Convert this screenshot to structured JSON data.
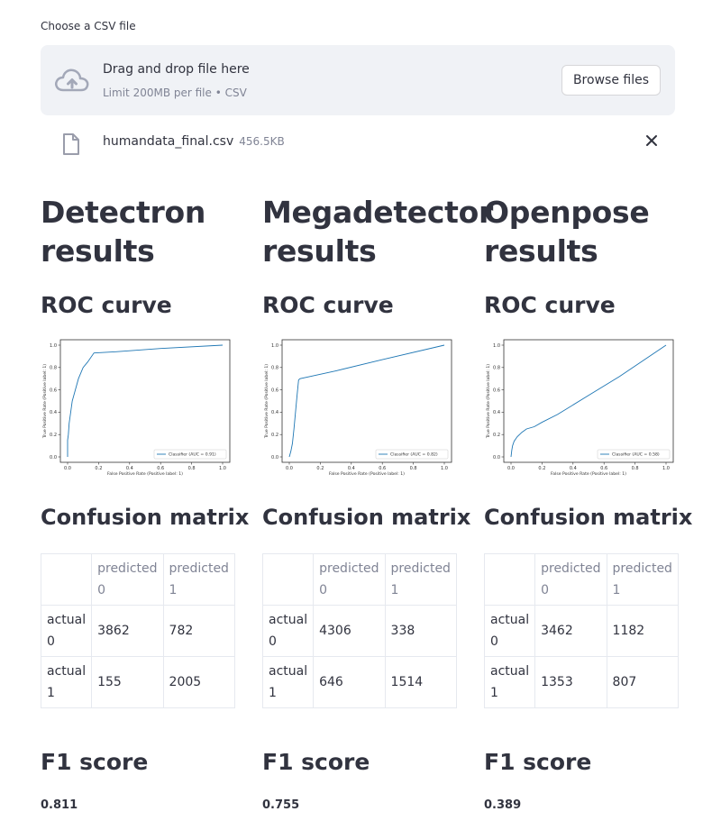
{
  "uploader": {
    "label": "Choose a CSV file",
    "drop_title": "Drag and drop file here",
    "limit": "Limit 200MB per file • CSV",
    "browse_label": "Browse files",
    "file_name": "humandata_final.csv",
    "file_size": "456.5KB"
  },
  "columns": [
    {
      "title": "Detectron results",
      "roc_heading": "ROC curve",
      "cm_heading": "Confusion matrix",
      "f1_heading": "F1 score",
      "f1_value": "0.811",
      "matrix": {
        "col_headers": [
          "predicted 0",
          "predicted 1"
        ],
        "rows": [
          {
            "label": "actual 0",
            "values": [
              "3862",
              "782"
            ]
          },
          {
            "label": "actual 1",
            "values": [
              "155",
              "2005"
            ]
          }
        ]
      },
      "chart_data": {
        "type": "line",
        "xlabel": "False Positive Rate (Positive label: 1)",
        "ylabel": "True Positive Rate (Positive label: 1)",
        "xlim": [
          0,
          1
        ],
        "ylim": [
          0,
          1
        ],
        "xticks": [
          "0.0",
          "0.2",
          "0.4",
          "0.6",
          "0.8",
          "1.0"
        ],
        "yticks": [
          "0.0",
          "0.2",
          "0.4",
          "0.6",
          "0.8",
          "1.0"
        ],
        "legend": "top-right",
        "series": [
          {
            "name": "Classifier (AUC = 0.91)",
            "x": [
              0,
              0,
              0.005,
              0.01,
              0.02,
              0.03,
              0.05,
              0.07,
              0.1,
              0.13,
              0.17,
              0.3,
              0.6,
              1.0
            ],
            "y": [
              0,
              0.15,
              0.2,
              0.3,
              0.4,
              0.5,
              0.6,
              0.7,
              0.8,
              0.85,
              0.93,
              0.94,
              0.97,
              1.0
            ]
          }
        ]
      }
    },
    {
      "title": "Megadetector results",
      "roc_heading": "ROC curve",
      "cm_heading": "Confusion matrix",
      "f1_heading": "F1 score",
      "f1_value": "0.755",
      "matrix": {
        "col_headers": [
          "predicted 0",
          "predicted 1"
        ],
        "rows": [
          {
            "label": "actual 0",
            "values": [
              "4306",
              "338"
            ]
          },
          {
            "label": "actual 1",
            "values": [
              "646",
              "1514"
            ]
          }
        ]
      },
      "chart_data": {
        "type": "line",
        "xlabel": "False Positive Rate (Positive label: 1)",
        "ylabel": "True Positive Rate (Positive label: 1)",
        "xlim": [
          0,
          1
        ],
        "ylim": [
          0,
          1
        ],
        "xticks": [
          "0.0",
          "0.2",
          "0.4",
          "0.6",
          "0.8",
          "1.0"
        ],
        "yticks": [
          "0.0",
          "0.2",
          "0.4",
          "0.6",
          "0.8",
          "1.0"
        ],
        "legend": "top-right",
        "series": [
          {
            "name": "Classifier (AUC = 0.82)",
            "x": [
              0,
              0.01,
              0.02,
              0.03,
              0.04,
              0.05,
              0.06,
              0.07,
              0.3,
              0.6,
              1.0
            ],
            "y": [
              0,
              0.05,
              0.12,
              0.25,
              0.4,
              0.55,
              0.69,
              0.7,
              0.77,
              0.87,
              1.0
            ]
          }
        ]
      }
    },
    {
      "title": "Openpose results",
      "roc_heading": "ROC curve",
      "cm_heading": "Confusion matrix",
      "f1_heading": "F1 score",
      "f1_value": "0.389",
      "matrix": {
        "col_headers": [
          "predicted 0",
          "predicted 1"
        ],
        "rows": [
          {
            "label": "actual 0",
            "values": [
              "3462",
              "1182"
            ]
          },
          {
            "label": "actual 1",
            "values": [
              "1353",
              "807"
            ]
          }
        ]
      },
      "chart_data": {
        "type": "line",
        "xlabel": "False Positive Rate (Positive label: 1)",
        "ylabel": "True Positive Rate (Positive label: 1)",
        "xlim": [
          0,
          1
        ],
        "ylim": [
          0,
          1
        ],
        "xticks": [
          "0.0",
          "0.2",
          "0.4",
          "0.6",
          "0.8",
          "1.0"
        ],
        "yticks": [
          "0.0",
          "0.2",
          "0.4",
          "0.6",
          "0.8",
          "1.0"
        ],
        "legend": "top-right",
        "series": [
          {
            "name": "Classifier (AUC = 0.58)",
            "x": [
              0,
              0.005,
              0.01,
              0.02,
              0.04,
              0.07,
              0.1,
              0.15,
              0.2,
              0.3,
              0.5,
              0.7,
              1.0
            ],
            "y": [
              0,
              0.06,
              0.1,
              0.14,
              0.18,
              0.22,
              0.25,
              0.27,
              0.31,
              0.38,
              0.55,
              0.72,
              1.0
            ]
          }
        ]
      }
    }
  ]
}
